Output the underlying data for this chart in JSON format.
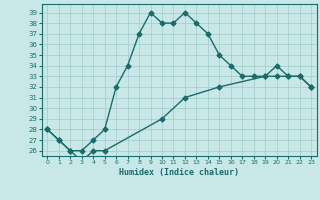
{
  "xlabel": "Humidex (Indice chaleur)",
  "bg_color": "#c8e8e8",
  "line_color": "#1a6b6b",
  "grid_color": "#a8d0d0",
  "x_ticks": [
    0,
    1,
    2,
    3,
    4,
    5,
    6,
    7,
    8,
    9,
    10,
    11,
    12,
    13,
    14,
    15,
    16,
    17,
    18,
    19,
    20,
    21,
    22,
    23
  ],
  "y_ticks": [
    26,
    27,
    28,
    29,
    30,
    31,
    32,
    33,
    34,
    35,
    36,
    37,
    38,
    39
  ],
  "ylim": [
    25.5,
    39.8
  ],
  "xlim": [
    -0.5,
    23.5
  ],
  "line1_x": [
    0,
    1,
    2,
    3,
    4,
    5,
    6,
    7,
    8,
    9,
    10,
    11,
    12,
    13,
    14,
    15,
    16,
    17,
    18,
    19,
    20,
    21,
    22,
    23
  ],
  "line1_y": [
    28,
    27,
    26,
    26,
    27,
    28,
    32,
    34,
    37,
    39,
    38,
    38,
    39,
    38,
    37,
    35,
    34,
    33,
    33,
    33,
    34,
    33,
    33,
    32
  ],
  "line2_x": [
    0,
    1,
    2,
    3,
    4,
    5,
    10,
    12,
    15,
    19,
    20,
    21,
    22,
    23
  ],
  "line2_y": [
    28,
    27,
    26,
    25,
    26,
    26,
    29,
    31,
    32,
    33,
    33,
    33,
    33,
    32
  ],
  "marker": "D",
  "marker_size": 2.5,
  "linewidth": 1.0
}
